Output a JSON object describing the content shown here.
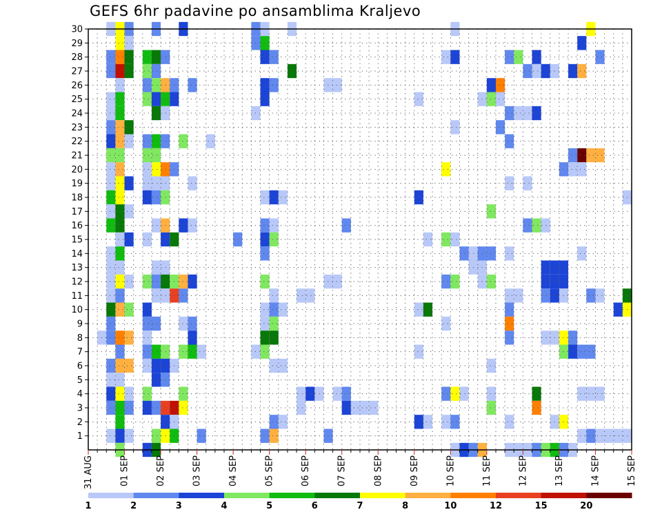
{
  "chart_data": {
    "type": "heatmap",
    "title": "GEFS 6hr padavine po ansamblima Kraljevo",
    "xlabel": "",
    "ylabel": "",
    "x_tick_labels": [
      "31 AUG",
      "01 SEP",
      "02 SEP",
      "03 SEP",
      "04 SEP",
      "05 SEP",
      "06 SEP",
      "07 SEP",
      "08 SEP",
      "09 SEP",
      "10 SEP",
      "11 SEP",
      "12 SEP",
      "13 SEP",
      "14 SEP",
      "15 SEP"
    ],
    "y_tick_labels": [
      "1",
      "2",
      "3",
      "4",
      "5",
      "6",
      "7",
      "8",
      "9",
      "10",
      "11",
      "12",
      "13",
      "14",
      "15",
      "16",
      "17",
      "18",
      "19",
      "20",
      "21",
      "22",
      "23",
      "24",
      "25",
      "26",
      "27",
      "28",
      "29",
      "30"
    ],
    "ylim": [
      0,
      30
    ],
    "grid": true,
    "time_steps_per_day": 4,
    "colorbar": {
      "levels": [
        "1",
        "2",
        "3",
        "4",
        "5",
        "6",
        "7",
        "8",
        "10",
        "12",
        "15",
        "20"
      ],
      "colors": [
        "#b8c8f8",
        "#6088ee",
        "#1c44d6",
        "#80e860",
        "#10bc10",
        "#087808",
        "#ffff00",
        "#ffb040",
        "#ff8000",
        "#e84020",
        "#c01000",
        "#6a0000"
      ]
    },
    "cells": [
      [
        30,
        2,
        0
      ],
      [
        30,
        3,
        6
      ],
      [
        30,
        4,
        1
      ],
      [
        30,
        7,
        1
      ],
      [
        30,
        10,
        2
      ],
      [
        30,
        18,
        1
      ],
      [
        30,
        19,
        0
      ],
      [
        30,
        22,
        0
      ],
      [
        30,
        40,
        0
      ],
      [
        30,
        55,
        6
      ],
      [
        29,
        3,
        6
      ],
      [
        29,
        4,
        0
      ],
      [
        29,
        18,
        1
      ],
      [
        29,
        19,
        4
      ],
      [
        29,
        54,
        2
      ],
      [
        28,
        2,
        1
      ],
      [
        28,
        3,
        8
      ],
      [
        28,
        4,
        5
      ],
      [
        28,
        6,
        4
      ],
      [
        28,
        7,
        5
      ],
      [
        28,
        8,
        1
      ],
      [
        28,
        19,
        2
      ],
      [
        28,
        20,
        1
      ],
      [
        28,
        39,
        0
      ],
      [
        28,
        40,
        2
      ],
      [
        28,
        46,
        1
      ],
      [
        28,
        47,
        3
      ],
      [
        28,
        49,
        2
      ],
      [
        28,
        56,
        1
      ],
      [
        27,
        2,
        1
      ],
      [
        27,
        3,
        10
      ],
      [
        27,
        4,
        5
      ],
      [
        27,
        6,
        3
      ],
      [
        27,
        7,
        1
      ],
      [
        27,
        22,
        5
      ],
      [
        27,
        48,
        1
      ],
      [
        27,
        49,
        0
      ],
      [
        27,
        50,
        2
      ],
      [
        27,
        51,
        0
      ],
      [
        27,
        53,
        2
      ],
      [
        27,
        54,
        7
      ],
      [
        27,
        60,
        0
      ],
      [
        26,
        3,
        0
      ],
      [
        26,
        6,
        1
      ],
      [
        26,
        7,
        3
      ],
      [
        26,
        8,
        7
      ],
      [
        26,
        9,
        1
      ],
      [
        26,
        11,
        1
      ],
      [
        26,
        19,
        2
      ],
      [
        26,
        20,
        1
      ],
      [
        26,
        26,
        0
      ],
      [
        26,
        27,
        0
      ],
      [
        26,
        44,
        2
      ],
      [
        26,
        45,
        8
      ],
      [
        25,
        2,
        0
      ],
      [
        25,
        3,
        4
      ],
      [
        25,
        6,
        3
      ],
      [
        25,
        7,
        2
      ],
      [
        25,
        8,
        4
      ],
      [
        25,
        9,
        2
      ],
      [
        25,
        19,
        2
      ],
      [
        25,
        36,
        0
      ],
      [
        25,
        43,
        0
      ],
      [
        25,
        44,
        3
      ],
      [
        25,
        45,
        0
      ],
      [
        24,
        2,
        0
      ],
      [
        24,
        3,
        4
      ],
      [
        24,
        7,
        5
      ],
      [
        24,
        8,
        0
      ],
      [
        24,
        18,
        0
      ],
      [
        24,
        46,
        1
      ],
      [
        24,
        47,
        0
      ],
      [
        24,
        48,
        0
      ],
      [
        24,
        49,
        2
      ],
      [
        23,
        2,
        1
      ],
      [
        23,
        3,
        7
      ],
      [
        23,
        4,
        5
      ],
      [
        23,
        40,
        0
      ],
      [
        23,
        45,
        1
      ],
      [
        22,
        2,
        2
      ],
      [
        22,
        3,
        7
      ],
      [
        22,
        4,
        0
      ],
      [
        22,
        6,
        1
      ],
      [
        22,
        7,
        4
      ],
      [
        22,
        8,
        1
      ],
      [
        22,
        10,
        3
      ],
      [
        22,
        13,
        0
      ],
      [
        22,
        46,
        1
      ],
      [
        21,
        2,
        3
      ],
      [
        21,
        3,
        3
      ],
      [
        21,
        6,
        3
      ],
      [
        21,
        7,
        3
      ],
      [
        21,
        53,
        1
      ],
      [
        21,
        54,
        11
      ],
      [
        21,
        55,
        7
      ],
      [
        21,
        56,
        7
      ],
      [
        20,
        2,
        0
      ],
      [
        20,
        3,
        7
      ],
      [
        20,
        6,
        0
      ],
      [
        20,
        7,
        6
      ],
      [
        20,
        8,
        8
      ],
      [
        20,
        9,
        1
      ],
      [
        20,
        39,
        6
      ],
      [
        20,
        52,
        1
      ],
      [
        20,
        53,
        0
      ],
      [
        20,
        54,
        0
      ],
      [
        19,
        2,
        0
      ],
      [
        19,
        3,
        6
      ],
      [
        19,
        4,
        2
      ],
      [
        19,
        6,
        0
      ],
      [
        19,
        7,
        0
      ],
      [
        19,
        8,
        0
      ],
      [
        19,
        11,
        0
      ],
      [
        19,
        46,
        0
      ],
      [
        19,
        48,
        0
      ],
      [
        18,
        2,
        4
      ],
      [
        18,
        3,
        6
      ],
      [
        18,
        6,
        2
      ],
      [
        18,
        7,
        1
      ],
      [
        18,
        8,
        3
      ],
      [
        18,
        19,
        0
      ],
      [
        18,
        20,
        2
      ],
      [
        18,
        21,
        0
      ],
      [
        18,
        36,
        2
      ],
      [
        18,
        59,
        0
      ],
      [
        18,
        60,
        0
      ],
      [
        17,
        2,
        0
      ],
      [
        17,
        3,
        5
      ],
      [
        17,
        4,
        0
      ],
      [
        17,
        44,
        3
      ],
      [
        16,
        2,
        4
      ],
      [
        16,
        3,
        5
      ],
      [
        16,
        7,
        0
      ],
      [
        16,
        8,
        7
      ],
      [
        16,
        10,
        2
      ],
      [
        16,
        11,
        0
      ],
      [
        16,
        19,
        1
      ],
      [
        16,
        20,
        0
      ],
      [
        16,
        28,
        1
      ],
      [
        16,
        48,
        1
      ],
      [
        16,
        49,
        3
      ],
      [
        16,
        50,
        0
      ],
      [
        15,
        3,
        0
      ],
      [
        15,
        4,
        2
      ],
      [
        15,
        6,
        0
      ],
      [
        15,
        8,
        2
      ],
      [
        15,
        9,
        5
      ],
      [
        15,
        16,
        1
      ],
      [
        15,
        19,
        2
      ],
      [
        15,
        20,
        3
      ],
      [
        15,
        37,
        0
      ],
      [
        15,
        39,
        3
      ],
      [
        15,
        40,
        0
      ],
      [
        14,
        2,
        0
      ],
      [
        14,
        3,
        4
      ],
      [
        14,
        19,
        1
      ],
      [
        14,
        41,
        1
      ],
      [
        14,
        42,
        0
      ],
      [
        14,
        43,
        1
      ],
      [
        14,
        44,
        1
      ],
      [
        14,
        46,
        0
      ],
      [
        14,
        54,
        0
      ],
      [
        13,
        2,
        0
      ],
      [
        13,
        3,
        0
      ],
      [
        13,
        7,
        0
      ],
      [
        13,
        8,
        0
      ],
      [
        13,
        42,
        0
      ],
      [
        13,
        43,
        0
      ],
      [
        13,
        50,
        2
      ],
      [
        13,
        51,
        2
      ],
      [
        13,
        52,
        2
      ],
      [
        12,
        2,
        0
      ],
      [
        12,
        3,
        6
      ],
      [
        12,
        4,
        0
      ],
      [
        12,
        6,
        3
      ],
      [
        12,
        7,
        1
      ],
      [
        12,
        8,
        5
      ],
      [
        12,
        9,
        3
      ],
      [
        12,
        10,
        7
      ],
      [
        12,
        11,
        2
      ],
      [
        12,
        19,
        3
      ],
      [
        12,
        26,
        0
      ],
      [
        12,
        27,
        0
      ],
      [
        12,
        39,
        1
      ],
      [
        12,
        40,
        3
      ],
      [
        12,
        43,
        0
      ],
      [
        12,
        44,
        3
      ],
      [
        12,
        50,
        2
      ],
      [
        12,
        51,
        2
      ],
      [
        12,
        52,
        2
      ],
      [
        11,
        2,
        0
      ],
      [
        11,
        3,
        1
      ],
      [
        11,
        7,
        0
      ],
      [
        11,
        8,
        0
      ],
      [
        11,
        9,
        9
      ],
      [
        11,
        10,
        1
      ],
      [
        11,
        20,
        0
      ],
      [
        11,
        23,
        0
      ],
      [
        11,
        24,
        0
      ],
      [
        11,
        46,
        0
      ],
      [
        11,
        47,
        0
      ],
      [
        11,
        50,
        1
      ],
      [
        11,
        51,
        2
      ],
      [
        11,
        52,
        0
      ],
      [
        11,
        55,
        1
      ],
      [
        11,
        56,
        0
      ],
      [
        11,
        59,
        5
      ],
      [
        10,
        2,
        5
      ],
      [
        10,
        3,
        7
      ],
      [
        10,
        4,
        3
      ],
      [
        10,
        6,
        2
      ],
      [
        10,
        19,
        0
      ],
      [
        10,
        20,
        1
      ],
      [
        10,
        21,
        0
      ],
      [
        10,
        36,
        0
      ],
      [
        10,
        37,
        5
      ],
      [
        10,
        46,
        1
      ],
      [
        10,
        58,
        2
      ],
      [
        10,
        59,
        6
      ],
      [
        10,
        60,
        2
      ],
      [
        9,
        2,
        1
      ],
      [
        9,
        6,
        1
      ],
      [
        9,
        7,
        1
      ],
      [
        9,
        10,
        0
      ],
      [
        9,
        11,
        1
      ],
      [
        9,
        19,
        0
      ],
      [
        9,
        20,
        3
      ],
      [
        9,
        39,
        0
      ],
      [
        9,
        46,
        8
      ],
      [
        8,
        1,
        0
      ],
      [
        8,
        2,
        1
      ],
      [
        8,
        3,
        8
      ],
      [
        8,
        4,
        7
      ],
      [
        8,
        6,
        0
      ],
      [
        8,
        11,
        2
      ],
      [
        8,
        19,
        5
      ],
      [
        8,
        20,
        5
      ],
      [
        8,
        46,
        1
      ],
      [
        8,
        50,
        0
      ],
      [
        8,
        51,
        0
      ],
      [
        8,
        52,
        6
      ],
      [
        8,
        53,
        1
      ],
      [
        7,
        3,
        1
      ],
      [
        7,
        6,
        1
      ],
      [
        7,
        7,
        4
      ],
      [
        7,
        8,
        3
      ],
      [
        7,
        10,
        3
      ],
      [
        7,
        11,
        4
      ],
      [
        7,
        12,
        0
      ],
      [
        7,
        18,
        0
      ],
      [
        7,
        19,
        3
      ],
      [
        7,
        36,
        0
      ],
      [
        7,
        52,
        3
      ],
      [
        7,
        53,
        2
      ],
      [
        7,
        54,
        1
      ],
      [
        7,
        55,
        1
      ],
      [
        6,
        2,
        1
      ],
      [
        6,
        3,
        7
      ],
      [
        6,
        4,
        7
      ],
      [
        6,
        6,
        0
      ],
      [
        6,
        7,
        2
      ],
      [
        6,
        8,
        2
      ],
      [
        6,
        9,
        0
      ],
      [
        6,
        20,
        0
      ],
      [
        6,
        21,
        0
      ],
      [
        6,
        44,
        0
      ],
      [
        5,
        2,
        0
      ],
      [
        5,
        3,
        0
      ],
      [
        5,
        7,
        2
      ],
      [
        5,
        8,
        1
      ],
      [
        4,
        2,
        2
      ],
      [
        4,
        3,
        6
      ],
      [
        4,
        4,
        0
      ],
      [
        4,
        6,
        3
      ],
      [
        4,
        10,
        3
      ],
      [
        4,
        23,
        0
      ],
      [
        4,
        24,
        2
      ],
      [
        4,
        25,
        0
      ],
      [
        4,
        27,
        0
      ],
      [
        4,
        28,
        1
      ],
      [
        4,
        39,
        1
      ],
      [
        4,
        40,
        6
      ],
      [
        4,
        41,
        0
      ],
      [
        4,
        44,
        0
      ],
      [
        4,
        49,
        5
      ],
      [
        4,
        54,
        0
      ],
      [
        4,
        55,
        0
      ],
      [
        4,
        56,
        0
      ],
      [
        3,
        2,
        1
      ],
      [
        3,
        3,
        4
      ],
      [
        3,
        4,
        1
      ],
      [
        3,
        6,
        2
      ],
      [
        3,
        7,
        1
      ],
      [
        3,
        8,
        9
      ],
      [
        3,
        9,
        10
      ],
      [
        3,
        10,
        6
      ],
      [
        3,
        23,
        0
      ],
      [
        3,
        28,
        2
      ],
      [
        3,
        29,
        0
      ],
      [
        3,
        30,
        0
      ],
      [
        3,
        31,
        0
      ],
      [
        3,
        44,
        3
      ],
      [
        3,
        49,
        8
      ],
      [
        2,
        3,
        4
      ],
      [
        2,
        8,
        2
      ],
      [
        2,
        9,
        0
      ],
      [
        2,
        20,
        1
      ],
      [
        2,
        21,
        0
      ],
      [
        2,
        36,
        2
      ],
      [
        2,
        37,
        0
      ],
      [
        2,
        39,
        0
      ],
      [
        2,
        40,
        1
      ],
      [
        2,
        46,
        0
      ],
      [
        2,
        51,
        0
      ],
      [
        2,
        52,
        6
      ],
      [
        1,
        2,
        0
      ],
      [
        1,
        3,
        2
      ],
      [
        1,
        4,
        0
      ],
      [
        1,
        7,
        3
      ],
      [
        1,
        8,
        6
      ],
      [
        1,
        9,
        4
      ],
      [
        1,
        12,
        1
      ],
      [
        1,
        19,
        1
      ],
      [
        1,
        20,
        7
      ],
      [
        1,
        26,
        1
      ],
      [
        1,
        54,
        0
      ],
      [
        1,
        55,
        1
      ],
      [
        1,
        56,
        0
      ],
      [
        1,
        57,
        0
      ],
      [
        1,
        58,
        0
      ],
      [
        1,
        59,
        0
      ],
      [
        0,
        3,
        3
      ],
      [
        0,
        6,
        2
      ],
      [
        0,
        7,
        5
      ],
      [
        0,
        40,
        0
      ],
      [
        0,
        41,
        2
      ],
      [
        0,
        42,
        1
      ],
      [
        0,
        43,
        7
      ],
      [
        0,
        46,
        0
      ],
      [
        0,
        47,
        0
      ],
      [
        0,
        48,
        0
      ],
      [
        0,
        49,
        1
      ],
      [
        0,
        50,
        3
      ],
      [
        0,
        51,
        4
      ],
      [
        0,
        52,
        1
      ],
      [
        0,
        53,
        0
      ]
    ]
  }
}
